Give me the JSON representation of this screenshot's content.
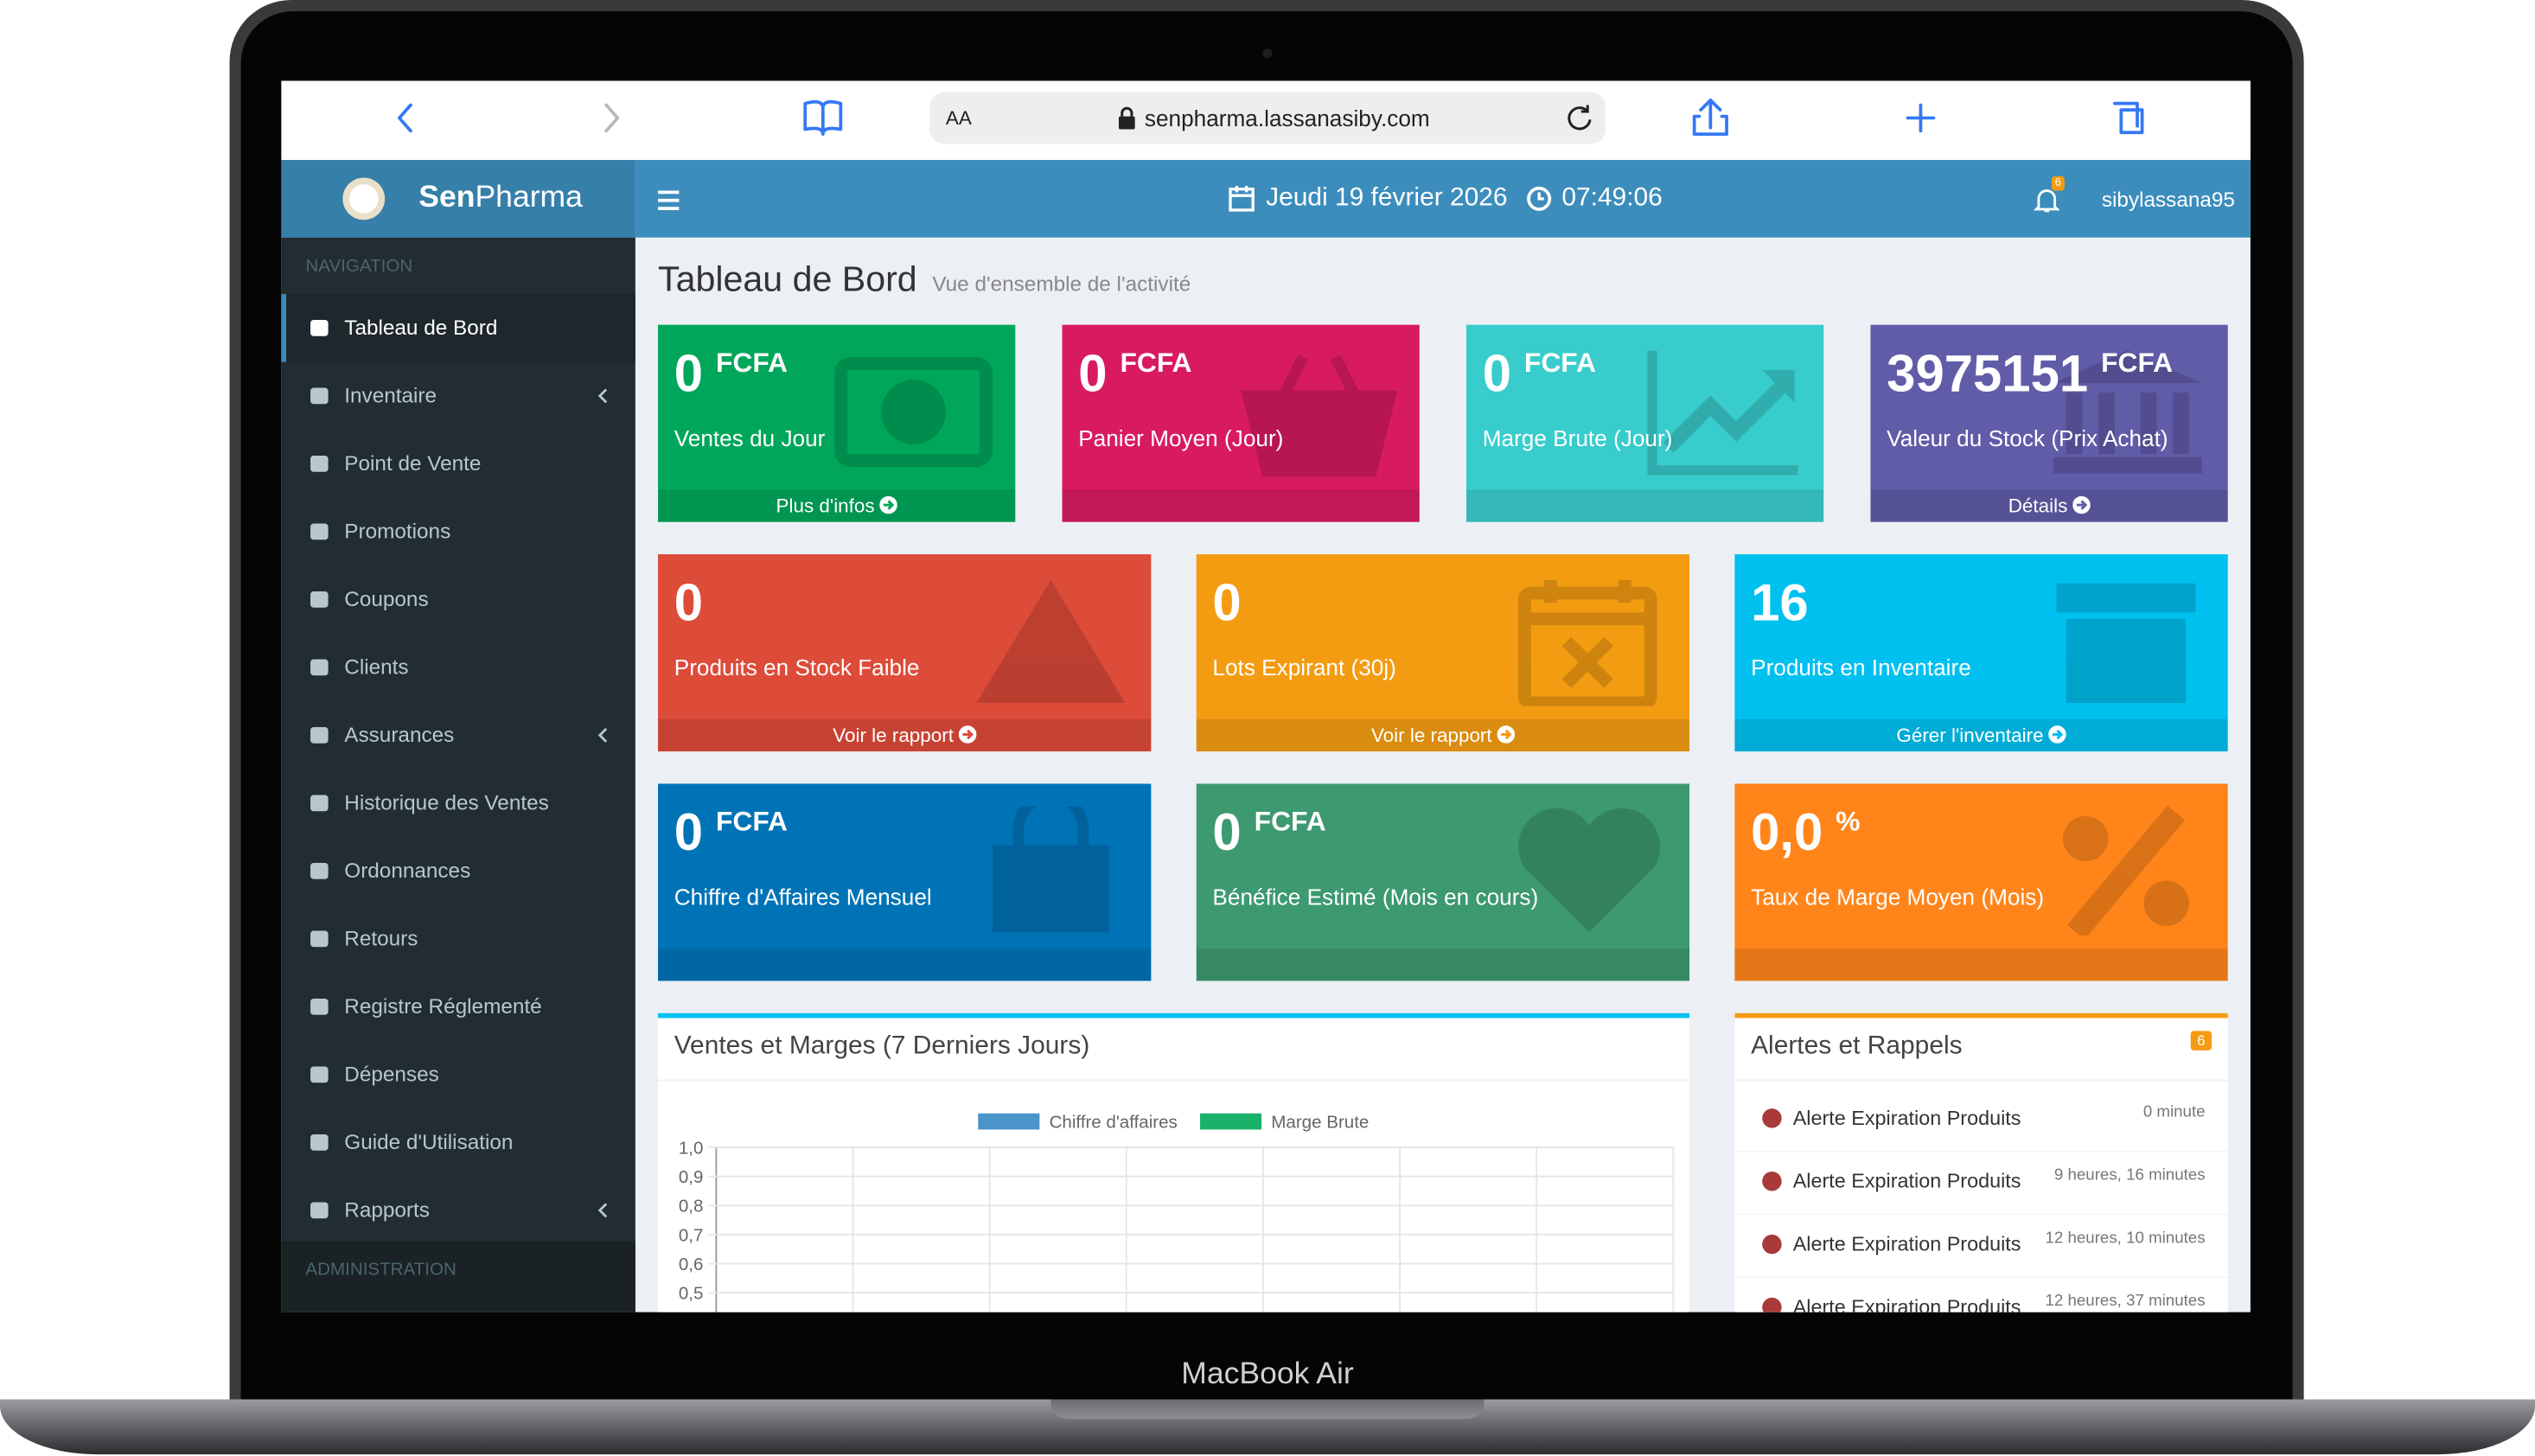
{
  "browser": {
    "text_size": "AA",
    "url": "senpharma.lassanasiby.com"
  },
  "header": {
    "brand_bold": "Sen",
    "brand_rest": "Pharma",
    "date": "Jeudi 19 février 2026",
    "time": "07:49:06",
    "notifications": "6",
    "user": "sibylassana95"
  },
  "sidebar": {
    "section": "NAVIGATION",
    "items": [
      "Tableau de Bord",
      "Inventaire",
      "Point de Vente",
      "Promotions",
      "Coupons",
      "Clients",
      "Assurances",
      "Historique des Ventes",
      "Ordonnances",
      "Retours",
      "Registre Réglementé",
      "Dépenses",
      "Guide d'Utilisation",
      "Rapports"
    ],
    "section2": "ADMINISTRATION"
  },
  "page": {
    "title": "Tableau de Bord",
    "subtitle": "Vue d'ensemble de l'activité"
  },
  "cards": [
    {
      "value": "0",
      "unit": "FCFA",
      "label": "Ventes du Jour",
      "link": "Plus d'infos"
    },
    {
      "value": "0",
      "unit": "FCFA",
      "label": "Panier Moyen (Jour)"
    },
    {
      "value": "0",
      "unit": "FCFA",
      "label": "Marge Brute (Jour)"
    },
    {
      "value": "3975151",
      "unit": "FCFA",
      "label": "Valeur du Stock (Prix Achat)",
      "link": "Détails"
    },
    {
      "value": "0",
      "label": "Produits en Stock Faible",
      "link": "Voir le rapport"
    },
    {
      "value": "0",
      "label": "Lots Expirant (30j)",
      "link": "Voir le rapport"
    },
    {
      "value": "16",
      "label": "Produits en Inventaire",
      "link": "Gérer l'inventaire"
    },
    {
      "value": "0",
      "unit": "FCFA",
      "label": "Chiffre d'Affaires Mensuel"
    },
    {
      "value": "0",
      "unit": "FCFA",
      "label": "Bénéfice Estimé (Mois en cours)"
    },
    {
      "value": "0,0",
      "unit": "%",
      "label": "Taux de Marge Moyen (Mois)"
    }
  ],
  "sales_chart": {
    "title": "Ventes et Marges (7 Derniers Jours)",
    "series": [
      {
        "name": "Chiffre d'affaires",
        "color": "#4b94c9"
      },
      {
        "name": "Marge Brute",
        "color": "#1ab26b"
      }
    ],
    "ylim": [
      0.5,
      1.0
    ],
    "yticks": [
      {
        "value": 1.0,
        "label": "1,0"
      },
      {
        "value": 0.9,
        "label": "0,9"
      },
      {
        "value": 0.8,
        "label": "0,8"
      },
      {
        "value": 0.7,
        "label": "0,7"
      },
      {
        "value": 0.6,
        "label": "0,6"
      },
      {
        "value": 0.5,
        "label": "0,5"
      }
    ]
  },
  "alerts": {
    "title": "Alertes et Rappels",
    "count": "6",
    "items": [
      {
        "text": "Alerte Expiration Produits",
        "time": "0 minute"
      },
      {
        "text": "Alerte Expiration Produits",
        "time": "9 heures, 16 minutes"
      },
      {
        "text": "Alerte Expiration Produits",
        "time": "12 heures, 10 minutes"
      },
      {
        "text": "Alerte Expiration Produits",
        "time": "12 heures, 37 minutes"
      }
    ]
  },
  "device": "MacBook Air"
}
